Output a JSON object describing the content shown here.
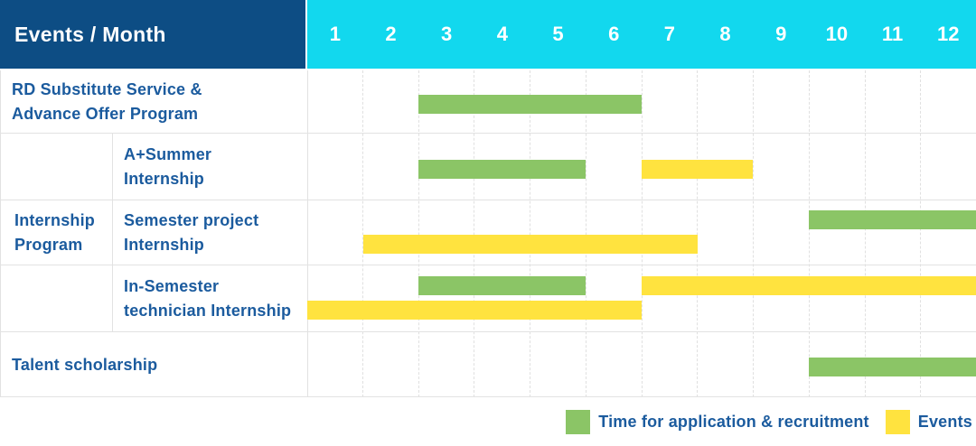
{
  "header": {
    "title": "Events / Month"
  },
  "months": [
    "1",
    "2",
    "3",
    "4",
    "5",
    "6",
    "7",
    "8",
    "9",
    "10",
    "11",
    "12"
  ],
  "colors": {
    "header_bg": "#0d4d84",
    "month_bg": "#12d8ee",
    "green": "#8bc566",
    "yellow": "#ffe33f",
    "text_blue": "#1b5b9e",
    "grid_line": "#e0e0e0",
    "row_line": "#e2e2e2"
  },
  "legend": [
    {
      "key": "application",
      "color": "green",
      "label": "Time for application & recruitment"
    },
    {
      "key": "events",
      "color": "yellow",
      "label": "Events"
    }
  ],
  "chart_data": {
    "type": "bar",
    "subtype": "gantt-schedule",
    "x_axis_label": "Month",
    "x_categories": [
      "1",
      "2",
      "3",
      "4",
      "5",
      "6",
      "7",
      "8",
      "9",
      "10",
      "11",
      "12"
    ],
    "x_range": [
      1,
      12
    ],
    "grid": "dashed-vertical-month-lines",
    "legend_position": "bottom-right",
    "series_legend": [
      "Time for application & recruitment",
      "Events"
    ],
    "group_label_lines": [
      "Internship",
      "Program"
    ],
    "group_label": "Internship Program",
    "rows": [
      {
        "label": "RD Substitute Service & Advance Offer Program",
        "label_lines": [
          "RD Substitute Service &",
          "Advance Offer Program"
        ],
        "group": "",
        "lanes": 1,
        "bars": [
          {
            "series": "Time for application & recruitment",
            "color": "green",
            "start_month": 3,
            "end_month": 6,
            "lane": 0
          }
        ]
      },
      {
        "label": "A+Summer Internship",
        "label_lines": [
          "A+Summer",
          "Internship"
        ],
        "group": "Internship Program",
        "lanes": 1,
        "bars": [
          {
            "series": "Time for application & recruitment",
            "color": "green",
            "start_month": 3,
            "end_month": 5,
            "lane": 0
          },
          {
            "series": "Events",
            "color": "yellow",
            "start_month": 7,
            "end_month": 8,
            "lane": 0
          }
        ]
      },
      {
        "label": "Semester project Internship",
        "label_lines": [
          "Semester project",
          "Internship"
        ],
        "group": "Internship Program",
        "lanes": 2,
        "bars": [
          {
            "series": "Time for application & recruitment",
            "color": "green",
            "start_month": 10,
            "end_month": 12,
            "lane": 0
          },
          {
            "series": "Events",
            "color": "yellow",
            "start_month": 2,
            "end_month": 7,
            "lane": 1
          }
        ]
      },
      {
        "label": "In-Semester technician Internship",
        "label_lines": [
          "In-Semester",
          "technician Internship"
        ],
        "group": "Internship Program",
        "lanes": 2,
        "bars": [
          {
            "series": "Time for application & recruitment",
            "color": "green",
            "start_month": 3,
            "end_month": 5,
            "lane": 0
          },
          {
            "series": "Events",
            "color": "yellow",
            "start_month": 7,
            "end_month": 12,
            "lane": 0
          },
          {
            "series": "Events",
            "color": "yellow",
            "start_month": 1,
            "end_month": 6,
            "lane": 1
          }
        ]
      },
      {
        "label": "Talent scholarship",
        "label_lines": [
          "Talent scholarship"
        ],
        "group": "",
        "lanes": 1,
        "bars": [
          {
            "series": "Time for application & recruitment",
            "color": "green",
            "start_month": 10,
            "end_month": 12,
            "lane": 0
          }
        ]
      }
    ]
  }
}
